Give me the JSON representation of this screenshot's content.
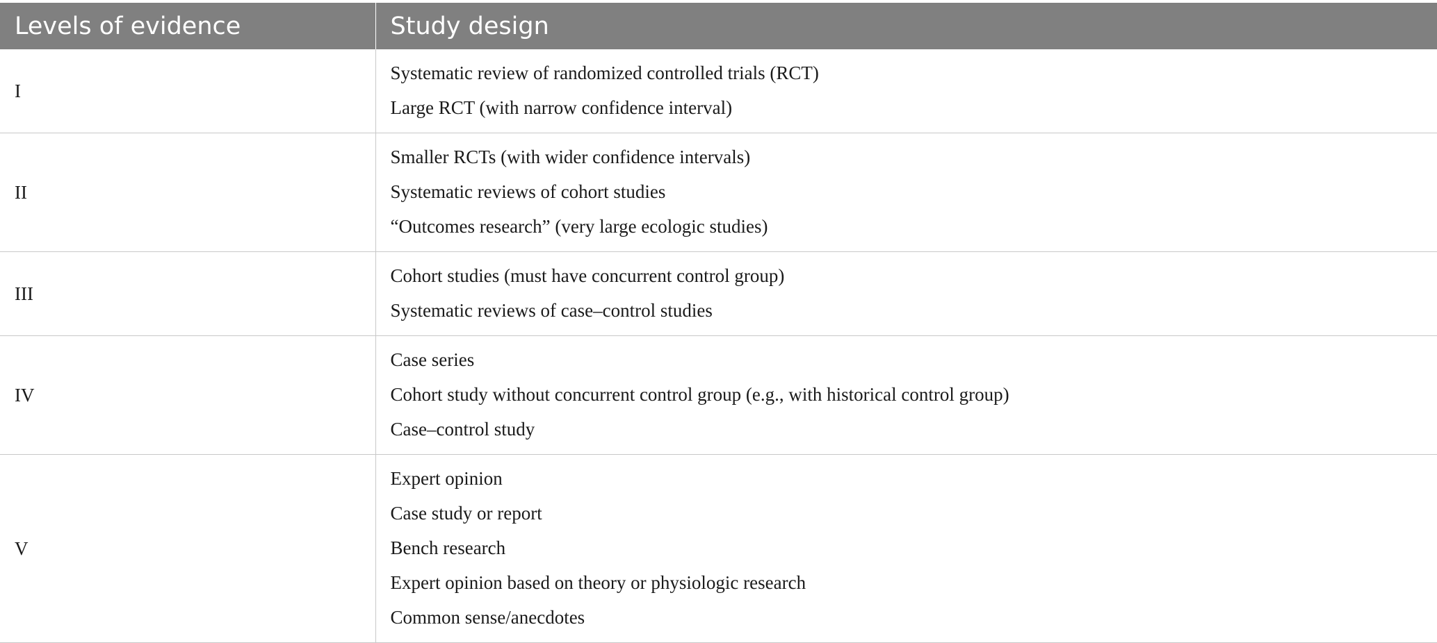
{
  "table": {
    "headers": {
      "level": "Levels of evidence",
      "design": "Study design"
    },
    "rows": [
      {
        "level": "I",
        "designs": [
          "Systematic review of randomized controlled trials (RCT)",
          "Large RCT (with narrow confidence interval)"
        ]
      },
      {
        "level": "II",
        "designs": [
          "Smaller RCTs (with wider confidence intervals)",
          "Systematic reviews of cohort studies",
          "“Outcomes research” (very large ecologic studies)"
        ]
      },
      {
        "level": "III",
        "designs": [
          "Cohort studies (must have concurrent control group)",
          "Systematic reviews of case–control studies"
        ]
      },
      {
        "level": "IV",
        "designs": [
          "Case series",
          "Cohort study without concurrent control group (e.g., with historical control group)",
          "Case–control study"
        ]
      },
      {
        "level": "V",
        "designs": [
          "Expert opinion",
          "Case study or report",
          "Bench research",
          "Expert opinion based on theory or physiologic research",
          "Common sense/anecdotes"
        ]
      }
    ]
  }
}
